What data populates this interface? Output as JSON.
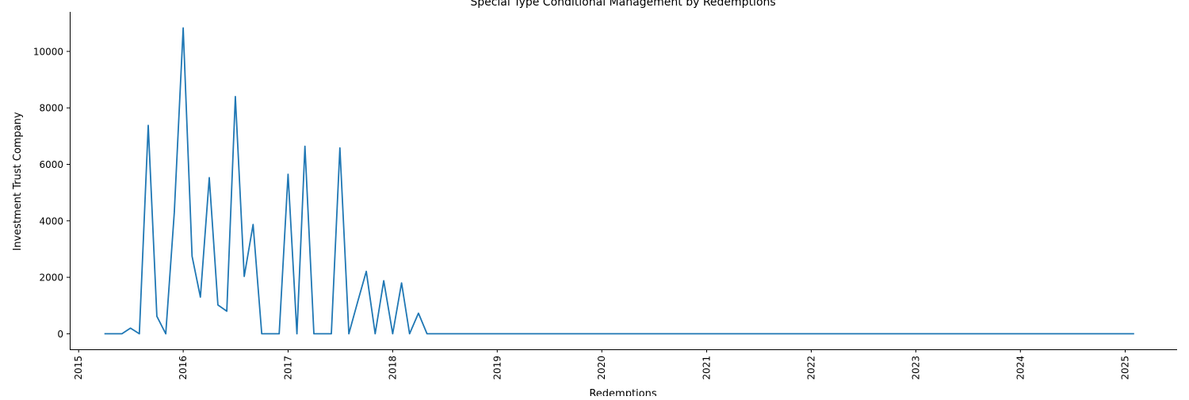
{
  "chart_data": {
    "type": "line",
    "title": "Special Type Conditional Management by Redemptions",
    "xlabel": "Redemptions",
    "ylabel": "Investment Trust Company",
    "x_ticks": [
      "2015",
      "2016",
      "2017",
      "2018",
      "2019",
      "2020",
      "2021",
      "2022",
      "2023",
      "2024",
      "2025"
    ],
    "y_ticks": [
      "0",
      "2000",
      "4000",
      "6000",
      "8000",
      "10000"
    ],
    "xlim": [
      "2014-12-01",
      "2025-07-01"
    ],
    "ylim": [
      -550,
      11400
    ],
    "grid": false,
    "line_color": "#1f77b4",
    "series": [
      {
        "x": [
          "2015-04-01",
          "2015-05-01",
          "2015-06-01",
          "2015-07-01",
          "2015-08-01",
          "2015-09-01",
          "2015-10-01",
          "2015-11-01",
          "2015-12-01",
          "2016-01-01",
          "2016-02-01",
          "2016-03-01",
          "2016-04-01",
          "2016-05-01",
          "2016-06-01",
          "2016-07-01",
          "2016-08-01",
          "2016-09-01",
          "2016-10-01",
          "2016-11-01",
          "2016-12-01",
          "2017-01-01",
          "2017-02-01",
          "2017-03-01",
          "2017-04-01",
          "2017-05-01",
          "2017-06-01",
          "2017-07-01",
          "2017-08-01",
          "2017-09-01",
          "2017-10-01",
          "2017-11-01",
          "2017-12-01",
          "2018-01-01",
          "2018-02-01",
          "2018-03-01",
          "2018-04-01",
          "2018-05-01",
          "2025-02-01"
        ],
        "y": [
          0,
          0,
          0,
          200,
          0,
          7380,
          620,
          0,
          4300,
          10830,
          2750,
          1300,
          5530,
          1020,
          800,
          8400,
          2030,
          3870,
          0,
          0,
          0,
          5650,
          0,
          6640,
          0,
          0,
          0,
          6580,
          0,
          1140,
          2210,
          0,
          1880,
          0,
          1800,
          0,
          730,
          0,
          0
        ]
      }
    ]
  }
}
